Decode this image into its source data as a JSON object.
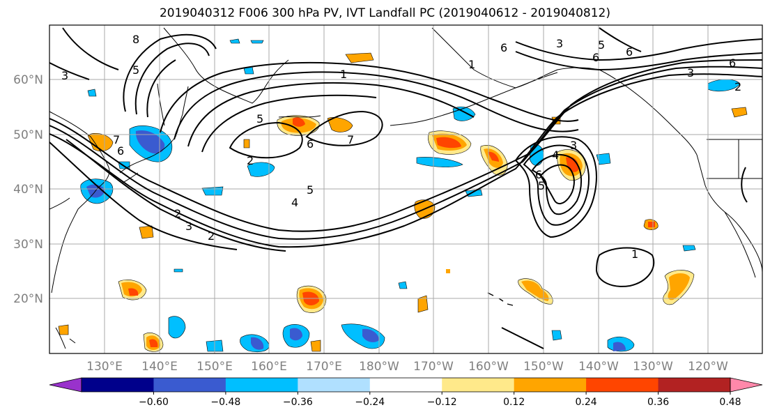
{
  "title": "2019040312 F006 300 hPa PV, IVT Landfall PC (2019040612 - 2019040812)",
  "map": {
    "region": "North Pacific",
    "projection": "equirectangular",
    "lon_range": [
      120,
      -106
    ],
    "lat_range": [
      10,
      70
    ],
    "gridlines": true,
    "lat_ticks": [
      "60°N",
      "50°N",
      "40°N",
      "30°N",
      "20°N"
    ],
    "lon_ticks": [
      "130°E",
      "140°E",
      "150°E",
      "160°E",
      "170°E",
      "180°W",
      "170°W",
      "160°W",
      "150°W",
      "140°W",
      "130°W",
      "120°W"
    ],
    "contour_color": "#000000",
    "contour_labels": [
      "8",
      "5",
      "3",
      "1",
      "5",
      "6",
      "7",
      "2",
      "2",
      "6",
      "7",
      "4",
      "5",
      "3",
      "2",
      "1",
      "3",
      "4",
      "6",
      "5",
      "6",
      "3",
      "6",
      "6",
      "6",
      "5",
      "3",
      "2",
      "1"
    ]
  },
  "colorbar": {
    "ticks": [
      "−0.60",
      "−0.48",
      "−0.36",
      "−0.24",
      "−0.12",
      "0.12",
      "0.24",
      "0.36",
      "0.48",
      "0.60"
    ],
    "colors": [
      "#9932cc",
      "#00008b",
      "#3a5bd0",
      "#00bfff",
      "#b0e0ff",
      "#ffffff",
      "#ffe98a",
      "#ffa500",
      "#ff4500",
      "#b22222",
      "#ff88aa"
    ]
  }
}
